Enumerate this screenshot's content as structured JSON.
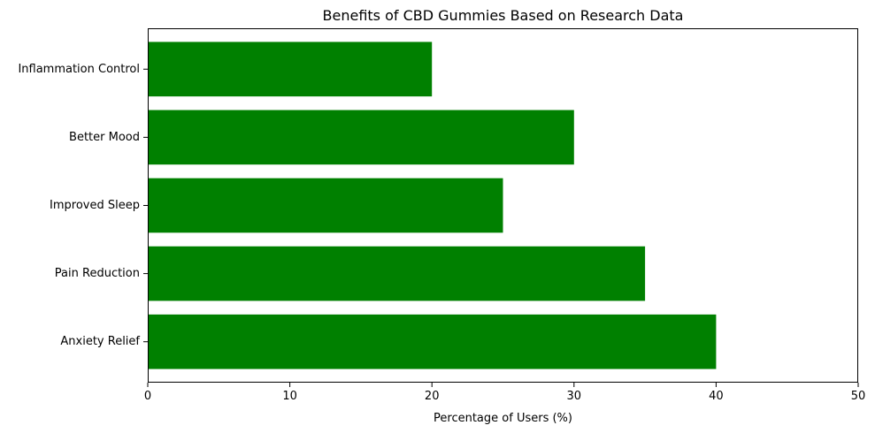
{
  "chart_data": {
    "type": "bar",
    "orientation": "horizontal",
    "title": "Benefits of CBD Gummies Based on Research Data",
    "xlabel": "Percentage of Users (%)",
    "ylabel": "",
    "categories": [
      "Anxiety Relief",
      "Pain Reduction",
      "Improved Sleep",
      "Better Mood",
      "Inflammation Control"
    ],
    "values": [
      40,
      35,
      25,
      30,
      20
    ],
    "xlim": [
      0,
      50
    ],
    "xticks": [
      0,
      10,
      20,
      30,
      40,
      50
    ],
    "bar_color": "#008000",
    "grid": false,
    "legend": "none"
  }
}
